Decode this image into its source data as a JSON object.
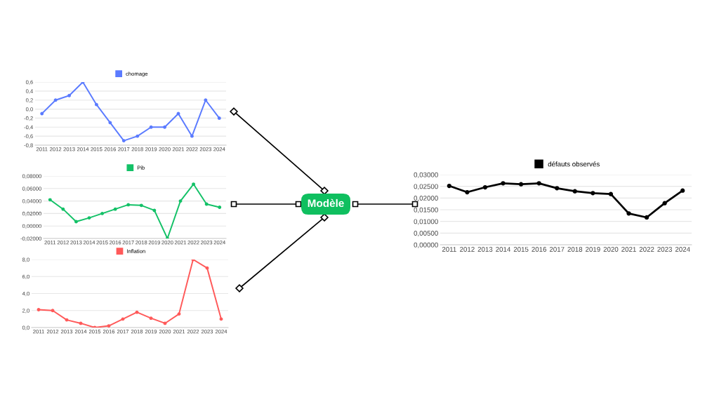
{
  "chart_data": [
    {
      "type": "line",
      "categories": [
        "2011",
        "2012",
        "2013",
        "2014",
        "2015",
        "2016",
        "2017",
        "2018",
        "2019",
        "2020",
        "2021",
        "2022",
        "2023",
        "2024"
      ],
      "series": [
        {
          "name": "chomage",
          "color": "#5b7bff",
          "values": [
            -0.1,
            0.2,
            0.3,
            0.6,
            0.1,
            -0.3,
            -0.7,
            -0.6,
            -0.4,
            -0.4,
            -0.1,
            -0.6,
            0.2,
            -0.2
          ]
        }
      ],
      "ylim": [
        -0.8,
        0.6
      ],
      "yticks": [
        {
          "value": -0.8,
          "label": "-0,8"
        },
        {
          "value": -0.6,
          "label": "-0,6"
        },
        {
          "value": -0.4,
          "label": "-0,4"
        },
        {
          "value": -0.2,
          "label": "-0,2"
        },
        {
          "value": 0,
          "label": "0,0"
        },
        {
          "value": 0.2,
          "label": "0,2"
        },
        {
          "value": 0.4,
          "label": "0,4"
        },
        {
          "value": 0.6,
          "label": "0,6"
        }
      ],
      "grid": "y",
      "legend": "top",
      "marker": "circle",
      "line_style": "solid"
    },
    {
      "type": "line",
      "categories": [
        "2011",
        "2012",
        "2013",
        "2014",
        "2015",
        "2016",
        "2017",
        "2018",
        "2019",
        "2020",
        "2021",
        "2022",
        "2023",
        "2024"
      ],
      "series": [
        {
          "name": "Pib",
          "color": "#13c167",
          "values": [
            0.042,
            0.027,
            0.007,
            0.013,
            0.02,
            0.027,
            0.034,
            0.033,
            0.025,
            -0.02,
            0.04,
            0.067,
            0.035,
            0.03
          ]
        }
      ],
      "ylim": [
        -0.02,
        0.08
      ],
      "yticks": [
        {
          "value": -0.02,
          "label": "-0,02000"
        },
        {
          "value": 0,
          "label": "0,00000"
        },
        {
          "value": 0.02,
          "label": "0,02000"
        },
        {
          "value": 0.04,
          "label": "0,04000"
        },
        {
          "value": 0.06,
          "label": "0,06000"
        },
        {
          "value": 0.08,
          "label": "0,08000"
        }
      ],
      "grid": "y",
      "legend": "top",
      "marker": "circle",
      "line_style": "solid"
    },
    {
      "type": "line",
      "categories": [
        "2011",
        "2012",
        "2013",
        "2014",
        "2015",
        "2016",
        "2017",
        "2018",
        "2019",
        "2020",
        "2021",
        "2022",
        "2023",
        "2024"
      ],
      "series": [
        {
          "name": "Inflation",
          "color": "#ff5a5a",
          "values": [
            2.1,
            2.0,
            0.9,
            0.5,
            0.0,
            0.2,
            1.0,
            1.8,
            1.1,
            0.5,
            1.6,
            8.0,
            7.0,
            1.0
          ]
        }
      ],
      "ylim": [
        0,
        8
      ],
      "yticks": [
        {
          "value": 0,
          "label": "0,0"
        },
        {
          "value": 2,
          "label": "2,0"
        },
        {
          "value": 4,
          "label": "4,0"
        },
        {
          "value": 6,
          "label": "6,0"
        },
        {
          "value": 8,
          "label": "8,0"
        }
      ],
      "grid": "y",
      "legend": "top",
      "marker": "circle",
      "line_style": "solid"
    },
    {
      "type": "other",
      "annotations": [
        "Modèle"
      ]
    },
    {
      "type": "line",
      "categories": [
        "2011",
        "2012",
        "2013",
        "2014",
        "2015",
        "2016",
        "2017",
        "2018",
        "2019",
        "2020",
        "2021",
        "2022",
        "2023",
        "2024"
      ],
      "series": [
        {
          "name": "défauts observés",
          "color": "#000000",
          "values": [
            0.0252,
            0.0225,
            0.0246,
            0.0263,
            0.0259,
            0.0263,
            0.0242,
            0.0229,
            0.0221,
            0.0217,
            0.0134,
            0.0117,
            0.0178,
            0.0232
          ]
        }
      ],
      "ylim": [
        0,
        0.03
      ],
      "yticks": [
        {
          "value": 0,
          "label": "0,00000"
        },
        {
          "value": 0.005,
          "label": "0,00500"
        },
        {
          "value": 0.01,
          "label": "0,01000"
        },
        {
          "value": 0.015,
          "label": "0,01500"
        },
        {
          "value": 0.02,
          "label": "0,02000"
        },
        {
          "value": 0.025,
          "label": "0,02500"
        },
        {
          "value": 0.03,
          "label": "0,03000"
        }
      ],
      "grid": "y",
      "legend": "top",
      "marker": "circle",
      "line_style": "solid"
    }
  ]
}
